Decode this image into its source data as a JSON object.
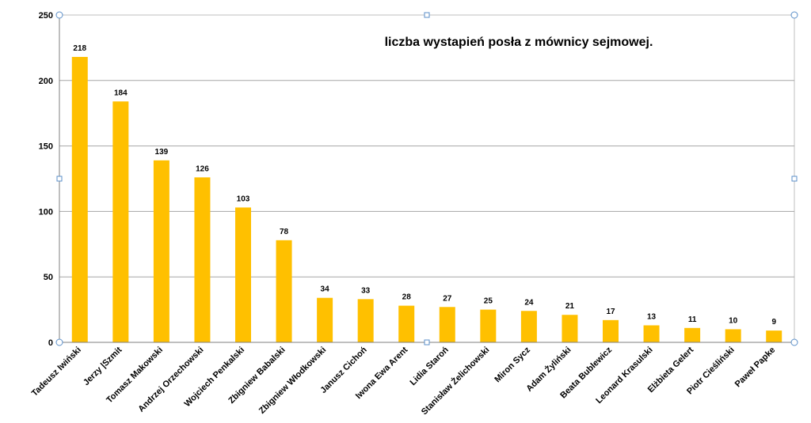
{
  "chart_data": {
    "type": "bar",
    "title": "liczba wystapień posła z mównicy sejmowej.",
    "xlabel": "",
    "ylabel": "",
    "ylim": [
      0,
      250
    ],
    "yticks": [
      0,
      50,
      100,
      150,
      200,
      250
    ],
    "grid": true,
    "legend": "none",
    "bar_color": "#FFC000",
    "categories": [
      "Tadeusz Iwiński",
      "Jerzy |Szmit",
      "Tomasz Makowski",
      "Andrzej Orzechowski",
      "Wojciech Penkalski",
      "Zbigniew Babalski",
      "Zbigniew Włodkowski",
      "Janusz Cichoń",
      "Iwona Ewa Arent",
      "Lidia Staroń",
      "Stanisław Żelichowski",
      "Miron Sycz",
      "Adam Żyliński",
      "Beata Bublewicz",
      "Leonard Krasulski",
      "Elżbieta Gelert",
      "Piotr Cieśliński",
      "Paweł Papke"
    ],
    "values": [
      218,
      184,
      139,
      126,
      103,
      78,
      34,
      33,
      28,
      27,
      25,
      24,
      21,
      17,
      13,
      11,
      10,
      9
    ],
    "data_labels": [
      "218",
      "184",
      "139",
      "126",
      "103",
      "78",
      "34",
      "33",
      "28",
      "27",
      "25",
      "24",
      "21",
      "17",
      "13",
      "11",
      "10",
      "9"
    ]
  }
}
